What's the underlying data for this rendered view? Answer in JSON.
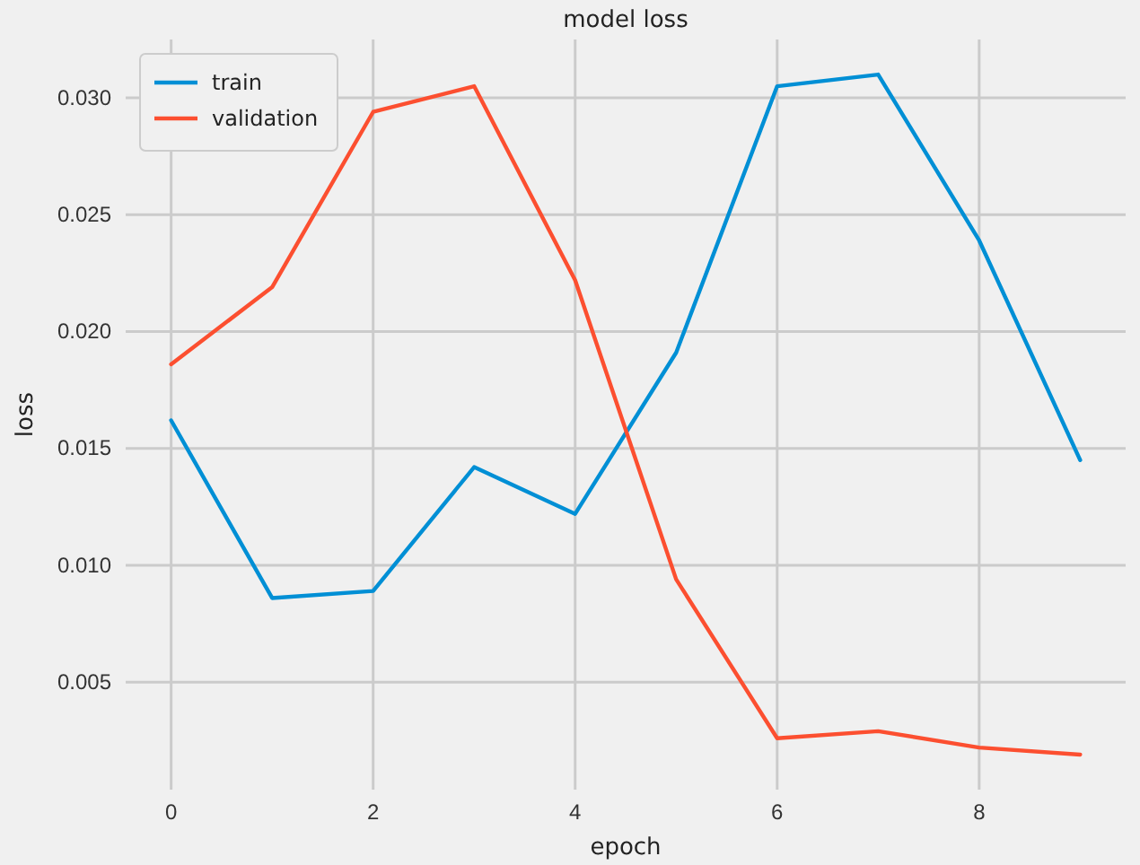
{
  "chart_data": {
    "type": "line",
    "title": "model loss",
    "xlabel": "epoch",
    "ylabel": "loss",
    "x": [
      0,
      1,
      2,
      3,
      4,
      5,
      6,
      7,
      8,
      9
    ],
    "series": [
      {
        "name": "train",
        "color": "#008fd5",
        "values": [
          0.0162,
          0.0086,
          0.0089,
          0.0142,
          0.0122,
          0.0191,
          0.0305,
          0.031,
          0.0239,
          0.0145
        ]
      },
      {
        "name": "validation",
        "color": "#fc4f30",
        "values": [
          0.0186,
          0.0219,
          0.0294,
          0.0305,
          0.0222,
          0.0094,
          0.0026,
          0.0029,
          0.0022,
          0.0019
        ]
      }
    ],
    "xlim": [
      -0.45,
      9.45
    ],
    "ylim": [
      0.0004,
      0.0325
    ],
    "xticks": [
      0,
      2,
      4,
      6,
      8
    ],
    "yticks": [
      {
        "value": 0.005,
        "label": "0.005"
      },
      {
        "value": 0.01,
        "label": "0.010"
      },
      {
        "value": 0.015,
        "label": "0.015"
      },
      {
        "value": 0.02,
        "label": "0.020"
      },
      {
        "value": 0.025,
        "label": "0.025"
      },
      {
        "value": 0.03,
        "label": "0.030"
      }
    ],
    "grid": true,
    "legend": "top left",
    "line_style": "solid",
    "marker": "none"
  }
}
